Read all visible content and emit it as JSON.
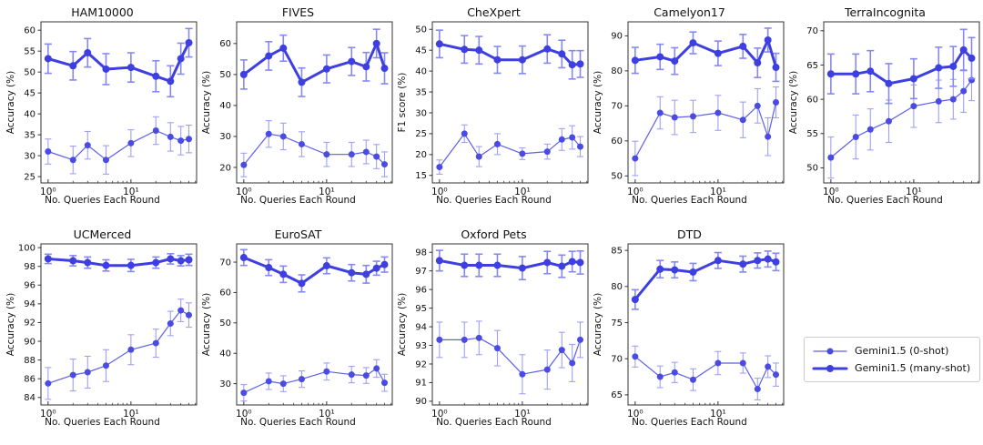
{
  "figure": {
    "xlabel": "No. Queries Each Round",
    "x_major_ticks": [
      "10⁰",
      "10¹"
    ],
    "colors": {
      "line_many": "#3e3fe0",
      "line_zero": "#5e5fe8",
      "marker_many": "#3e3fe0",
      "marker_zero": "#4a4be2",
      "err_many": "#8688f2",
      "err_zero": "#9fa0f6",
      "axis": "#333333",
      "text": "#111111"
    },
    "legend": {
      "items": [
        {
          "label": "Gemini1.5 (0-shot)",
          "style": "thin"
        },
        {
          "label": "Gemini1.5 (many-shot)",
          "style": "thick"
        }
      ]
    }
  },
  "chart_data": [
    {
      "type": "line",
      "title": "HAM10000",
      "xlabel": "No. Queries Each Round",
      "ylabel": "Accuracy (%)",
      "xscale": "log",
      "x": [
        1,
        2,
        3,
        5,
        10,
        20,
        30,
        40,
        50
      ],
      "xlim": [
        0.82,
        62
      ],
      "ylim": [
        23.5,
        62
      ],
      "yticks": [
        25,
        30,
        35,
        40,
        45,
        50,
        55,
        60
      ],
      "series": [
        {
          "name": "Gemini1.5 (0-shot)",
          "values": [
            31,
            29,
            32.5,
            29,
            33,
            36,
            34.5,
            33.6,
            34
          ],
          "err": [
            3,
            3.3,
            3.3,
            3.4,
            3.2,
            3.3,
            3.4,
            3.4,
            3.3
          ]
        },
        {
          "name": "Gemini1.5 (many-shot)",
          "values": [
            53.2,
            51.5,
            54.6,
            50.7,
            51.1,
            49,
            47.8,
            53.2,
            57
          ],
          "err": [
            3.5,
            3.4,
            3.4,
            3.7,
            3.5,
            3.7,
            3.7,
            3.7,
            3.4
          ]
        }
      ]
    },
    {
      "type": "line",
      "title": "FIVES",
      "xlabel": "No. Queries Each Round",
      "ylabel": "Accuracy (%)",
      "xscale": "log",
      "x": [
        1,
        2,
        3,
        5,
        10,
        20,
        30,
        40,
        50
      ],
      "xlim": [
        0.82,
        62
      ],
      "ylim": [
        15,
        67
      ],
      "yticks": [
        20,
        30,
        40,
        50,
        60
      ],
      "series": [
        {
          "name": "Gemini1.5 (0-shot)",
          "values": [
            20.8,
            30.8,
            30,
            27.5,
            24.2,
            24.2,
            25,
            23.5,
            21
          ],
          "err": [
            3.8,
            4.3,
            4.3,
            4,
            3.9,
            3.9,
            3.8,
            3.9,
            4
          ]
        },
        {
          "name": "Gemini1.5 (many-shot)",
          "values": [
            50,
            56,
            58.5,
            47.5,
            51.8,
            54.2,
            52.5,
            60,
            52
          ],
          "err": [
            4.7,
            4.6,
            4.2,
            4.6,
            4.5,
            4.5,
            4.6,
            4.6,
            5
          ]
        }
      ]
    },
    {
      "type": "line",
      "title": "CheXpert",
      "xlabel": "No. Queries Each Round",
      "ylabel": "F1 score (%)",
      "xscale": "log",
      "x": [
        1,
        2,
        3,
        5,
        10,
        20,
        30,
        40,
        50
      ],
      "xlim": [
        0.82,
        62
      ],
      "ylim": [
        13.2,
        51.8
      ],
      "yticks": [
        15,
        20,
        25,
        30,
        35,
        40,
        45,
        50
      ],
      "series": [
        {
          "name": "Gemini1.5 (0-shot)",
          "values": [
            17,
            25,
            19.5,
            22.5,
            20.2,
            20.7,
            23.6,
            24.1,
            21.9
          ],
          "err": [
            1.7,
            2.1,
            2.4,
            2.5,
            1.4,
            1.8,
            2.6,
            2.8,
            2.4
          ]
        },
        {
          "name": "Gemini1.5 (many-shot)",
          "values": [
            46.5,
            45.2,
            45,
            42.7,
            42.7,
            45.3,
            44.1,
            41.5,
            41.7
          ],
          "err": [
            3.3,
            3.3,
            3.3,
            3.2,
            3.3,
            3.4,
            3.3,
            3.4,
            3.2
          ]
        }
      ]
    },
    {
      "type": "line",
      "title": "Camelyon17",
      "xlabel": "No. Queries Each Round",
      "ylabel": "Accuracy (%)",
      "xscale": "log",
      "x": [
        1,
        2,
        3,
        5,
        10,
        20,
        30,
        40,
        50
      ],
      "xlim": [
        0.82,
        62
      ],
      "ylim": [
        48,
        94
      ],
      "yticks": [
        50,
        60,
        70,
        80,
        90
      ],
      "series": [
        {
          "name": "Gemini1.5 (0-shot)",
          "values": [
            55,
            68,
            66.7,
            67,
            68,
            66,
            70,
            61.2,
            71
          ],
          "err": [
            4.9,
            4.6,
            4.9,
            4.6,
            5,
            5.1,
            4.9,
            5.4,
            4.4
          ]
        },
        {
          "name": "Gemini1.5 (many-shot)",
          "values": [
            83,
            84,
            82.8,
            88,
            85,
            87,
            82.3,
            88.8,
            81
          ],
          "err": [
            3.7,
            3.6,
            3.8,
            3.1,
            3.5,
            3.4,
            4.2,
            3.4,
            4
          ]
        }
      ]
    },
    {
      "type": "line",
      "title": "TerraIncognita",
      "xlabel": "No. Queries Each Round",
      "ylabel": "Accuracy (%)",
      "xscale": "log",
      "x": [
        1,
        2,
        3,
        5,
        10,
        20,
        30,
        40,
        50
      ],
      "xlim": [
        0.82,
        62
      ],
      "ylim": [
        47.8,
        71.3
      ],
      "yticks": [
        50,
        55,
        60,
        65,
        70
      ],
      "series": [
        {
          "name": "Gemini1.5 (0-shot)",
          "values": [
            51.5,
            54.5,
            55.6,
            56.8,
            59,
            59.7,
            60,
            61.2,
            62.8
          ],
          "err": [
            3,
            3.2,
            3,
            3.1,
            3.1,
            3.1,
            2.9,
            3.1,
            3
          ]
        },
        {
          "name": "Gemini1.5 (many-shot)",
          "values": [
            63.7,
            63.7,
            64.1,
            62.3,
            63,
            64.6,
            64.8,
            67.2,
            66
          ],
          "err": [
            2.9,
            2.9,
            3,
            2.9,
            2.9,
            3,
            2.9,
            3,
            3
          ]
        }
      ]
    },
    {
      "type": "line",
      "title": "UCMerced",
      "xlabel": "No. Queries Each Round",
      "ylabel": "Accuracy (%)",
      "xscale": "log",
      "x": [
        1,
        2,
        3,
        5,
        10,
        20,
        30,
        40,
        50
      ],
      "xlim": [
        0.82,
        62
      ],
      "ylim": [
        83.2,
        100.4
      ],
      "yticks": [
        84,
        86,
        88,
        90,
        92,
        94,
        96,
        98,
        100
      ],
      "series": [
        {
          "name": "Gemini1.5 (0-shot)",
          "values": [
            85.5,
            86.4,
            86.7,
            87.4,
            89.1,
            89.8,
            91.9,
            93.3,
            92.8
          ],
          "err": [
            1.7,
            1.7,
            1.7,
            1.7,
            1.6,
            1.5,
            1.3,
            1.2,
            1.3
          ]
        },
        {
          "name": "Gemini1.5 (many-shot)",
          "values": [
            98.8,
            98.6,
            98.4,
            98.1,
            98.1,
            98.4,
            98.8,
            98.6,
            98.7
          ],
          "err": [
            0.5,
            0.55,
            0.6,
            0.6,
            0.65,
            0.6,
            0.55,
            0.55,
            0.6
          ]
        }
      ]
    },
    {
      "type": "line",
      "title": "EuroSAT",
      "xlabel": "No. Queries Each Round",
      "ylabel": "Accuracy (%)",
      "xscale": "log",
      "x": [
        1,
        2,
        3,
        5,
        10,
        20,
        30,
        40,
        50
      ],
      "xlim": [
        0.82,
        62
      ],
      "ylim": [
        23,
        76
      ],
      "yticks": [
        30,
        40,
        50,
        60,
        70
      ],
      "series": [
        {
          "name": "Gemini1.5 (0-shot)",
          "values": [
            27,
            30.8,
            30,
            31.5,
            34,
            33,
            32.7,
            35,
            30.3
          ],
          "err": [
            2.7,
            2.7,
            2.6,
            2.7,
            2.8,
            2.7,
            2.6,
            2.9,
            2.8
          ]
        },
        {
          "name": "Gemini1.5 (many-shot)",
          "values": [
            71.5,
            68.2,
            66,
            63,
            68.8,
            66.5,
            66,
            68,
            69.2
          ],
          "err": [
            2.6,
            2.6,
            2.7,
            2.8,
            2.6,
            2.7,
            2.9,
            2.3,
            2.5
          ]
        }
      ]
    },
    {
      "type": "line",
      "title": "Oxford Pets",
      "xlabel": "No. Queries Each Round",
      "ylabel": "Accuracy (%)",
      "xscale": "log",
      "x": [
        1,
        2,
        3,
        5,
        10,
        20,
        30,
        40,
        50
      ],
      "xlim": [
        0.82,
        62
      ],
      "ylim": [
        89.8,
        98.45
      ],
      "yticks": [
        90,
        91,
        92,
        93,
        94,
        95,
        96,
        97,
        98
      ],
      "series": [
        {
          "name": "Gemini1.5 (0-shot)",
          "values": [
            93.3,
            93.3,
            93.4,
            92.85,
            91.45,
            91.7,
            92.75,
            92.05,
            93.3
          ],
          "err": [
            0.95,
            0.95,
            0.9,
            0.95,
            1.05,
            1.05,
            0.95,
            1,
            0.95
          ]
        },
        {
          "name": "Gemini1.5 (many-shot)",
          "values": [
            97.55,
            97.3,
            97.3,
            97.3,
            97.15,
            97.45,
            97.25,
            97.5,
            97.45
          ],
          "err": [
            0.55,
            0.6,
            0.6,
            0.6,
            0.62,
            0.6,
            0.6,
            0.55,
            0.62
          ]
        }
      ]
    },
    {
      "type": "line",
      "title": "DTD",
      "xlabel": "No. Queries Each Round",
      "ylabel": "Accuracy (%)",
      "xscale": "log",
      "x": [
        1,
        2,
        3,
        5,
        10,
        20,
        30,
        40,
        50
      ],
      "xlim": [
        0.82,
        62
      ],
      "ylim": [
        63.6,
        85.9
      ],
      "yticks": [
        65,
        70,
        75,
        80,
        85
      ],
      "series": [
        {
          "name": "Gemini1.5 (0-shot)",
          "values": [
            70.3,
            67.5,
            68.1,
            67.1,
            69.4,
            69.4,
            65.8,
            68.9,
            67.8
          ],
          "err": [
            1.45,
            1.5,
            1.4,
            1.5,
            1.6,
            1.4,
            1.5,
            1.5,
            1.6
          ]
        },
        {
          "name": "Gemini1.5 (many-shot)",
          "values": [
            78.2,
            82.4,
            82.3,
            82,
            83.6,
            83.1,
            83.6,
            83.8,
            83.4
          ],
          "err": [
            1.35,
            1.2,
            1.1,
            1.2,
            1.1,
            1.1,
            1.05,
            1.1,
            1.2
          ]
        }
      ]
    }
  ]
}
